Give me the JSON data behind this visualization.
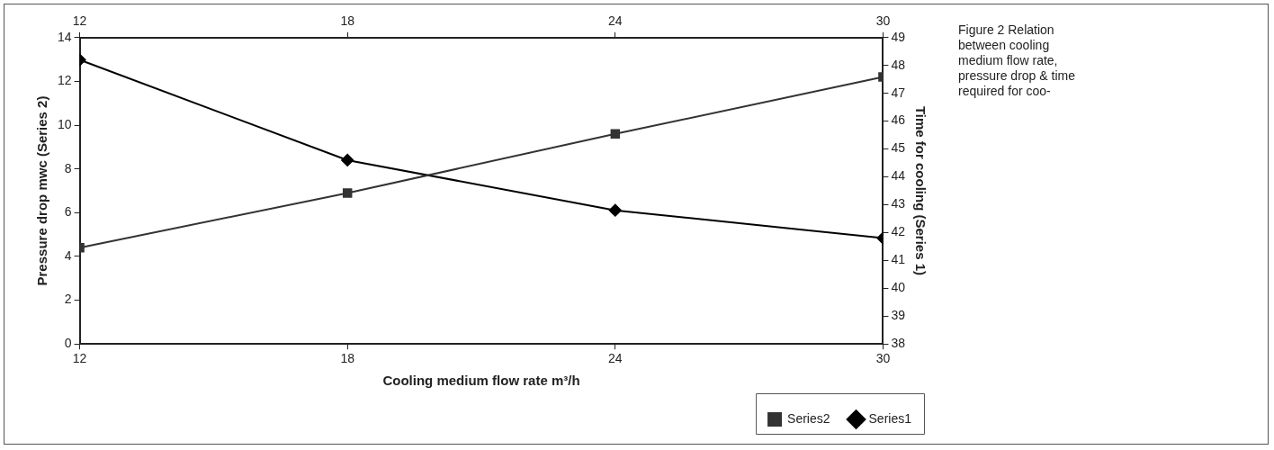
{
  "chart_data": {
    "type": "line",
    "xlabel": "Cooling medium flow rate m³/h",
    "ylabel": "Pressure drop mwc (Series 2)",
    "y2label": "Time for cooling (Series 1)",
    "xlim": [
      12,
      30
    ],
    "xticks": [
      12,
      18,
      24,
      30
    ],
    "x2lim": [
      12,
      30
    ],
    "x2ticks": [
      12,
      18,
      24,
      30
    ],
    "ylim": [
      0,
      14
    ],
    "yticks": [
      0,
      2,
      4,
      6,
      8,
      10,
      12,
      14
    ],
    "y2lim": [
      38,
      49
    ],
    "y2ticks": [
      38,
      39,
      40,
      41,
      42,
      43,
      44,
      45,
      46,
      47,
      48,
      49
    ],
    "series": [
      {
        "name": "Series2",
        "color": "#333333",
        "marker": "square",
        "x": [
          12,
          18,
          24,
          30
        ],
        "values": [
          4.4,
          6.9,
          9.6,
          12.2
        ]
      },
      {
        "name": "Series1",
        "color": "#000000",
        "marker": "diamond",
        "axis": "y2",
        "x": [
          12,
          18,
          24,
          30
        ],
        "values": [
          48.2,
          44.6,
          42.8,
          41.8
        ]
      }
    ],
    "grid": false,
    "legend": "bottom right",
    "line_style": "solid",
    "annotations": [
      "Figure 2    Relation between cooling medium flow rate, pressure drop & time required for coo-"
    ]
  }
}
